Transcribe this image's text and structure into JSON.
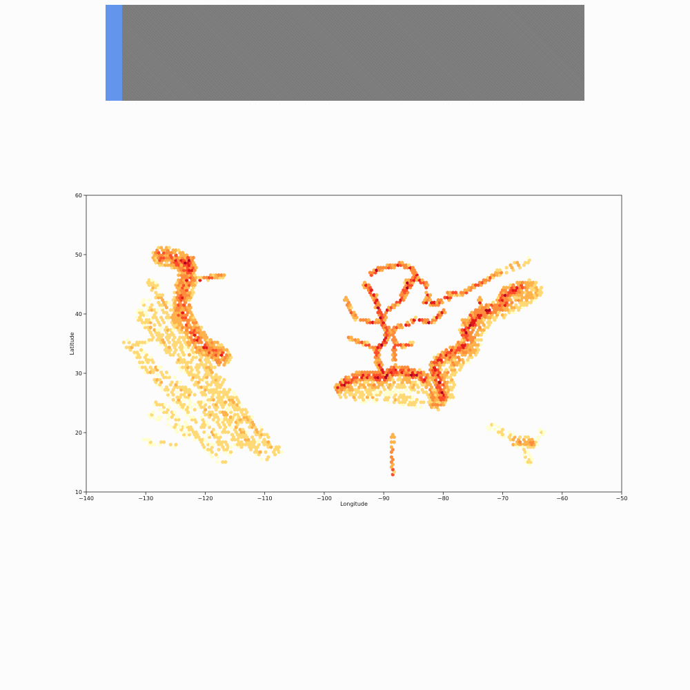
{
  "progress": {
    "fraction": 0.034,
    "fill_color": "#6495ED",
    "track_color": "#7f7f7f"
  },
  "chart_data": {
    "type": "heatmap",
    "subtype": "hexbin",
    "title": "",
    "xlabel": "Longitude",
    "ylabel": "Latitude",
    "xlim": [
      -140,
      -50
    ],
    "ylim": [
      10,
      60
    ],
    "xticks": [
      -140,
      -130,
      -120,
      -110,
      -100,
      -90,
      -80,
      -70,
      -60,
      -50
    ],
    "yticks": [
      10,
      20,
      30,
      40,
      50,
      60
    ],
    "grid": false,
    "colormap": [
      "#ffffcc",
      "#fed976",
      "#feb24c",
      "#fd8d3c",
      "#fc4e2a",
      "#e31a1c",
      "#b10026"
    ],
    "density_paths": [
      {
        "name": "pacific-coast",
        "width": 1.6,
        "density": 0.7,
        "points": [
          [
            -127.5,
            49.8
          ],
          [
            -125.5,
            49.5
          ],
          [
            -123.5,
            48.5
          ],
          [
            -123,
            46
          ],
          [
            -124,
            42
          ],
          [
            -123.8,
            40
          ],
          [
            -122.5,
            37.8
          ],
          [
            -120.6,
            34.6
          ],
          [
            -118.3,
            33.8
          ],
          [
            -117.2,
            32.7
          ]
        ]
      },
      {
        "name": "puget-sound",
        "width": 0.9,
        "density": 0.95,
        "points": [
          [
            -124.5,
            48.4
          ],
          [
            -123.2,
            48.8
          ],
          [
            -122.4,
            47.6
          ],
          [
            -122.7,
            49
          ]
        ]
      },
      {
        "name": "columbia-river",
        "width": 0.4,
        "density": 0.7,
        "points": [
          [
            -124,
            46.2
          ],
          [
            -122.5,
            46
          ],
          [
            -121,
            45.7
          ],
          [
            -119,
            46.2
          ],
          [
            -117,
            46.5
          ]
        ]
      },
      {
        "name": "pacific-lane-1",
        "width": 0.9,
        "density": 0.35,
        "points": [
          [
            -129,
            45
          ],
          [
            -124,
            37
          ],
          [
            -118,
            29
          ],
          [
            -112,
            21
          ],
          [
            -108,
            17
          ]
        ]
      },
      {
        "name": "pacific-lane-2",
        "width": 0.9,
        "density": 0.35,
        "points": [
          [
            -131,
            40
          ],
          [
            -125,
            33
          ],
          [
            -119,
            26
          ],
          [
            -113,
            19
          ],
          [
            -110,
            16
          ]
        ]
      },
      {
        "name": "pacific-lane-3",
        "width": 0.8,
        "density": 0.3,
        "points": [
          [
            -133,
            35
          ],
          [
            -126,
            29
          ],
          [
            -120,
            24
          ],
          [
            -114,
            18
          ]
        ]
      },
      {
        "name": "pacific-lane-4",
        "width": 0.8,
        "density": 0.3,
        "points": [
          [
            -131,
            32
          ],
          [
            -125,
            26
          ],
          [
            -119,
            20
          ],
          [
            -116,
            17
          ]
        ]
      },
      {
        "name": "pacific-lane-5",
        "width": 0.7,
        "density": 0.25,
        "points": [
          [
            -128,
            25
          ],
          [
            -122,
            20
          ],
          [
            -117,
            15
          ]
        ]
      },
      {
        "name": "pacific-lane-6",
        "width": 0.7,
        "density": 0.3,
        "points": [
          [
            -130,
            42
          ],
          [
            -122,
            32
          ],
          [
            -114,
            22
          ]
        ]
      },
      {
        "name": "pacific-west-fringe",
        "width": 0.5,
        "density": 0.22,
        "points": [
          [
            -128,
            36
          ],
          [
            -131,
            35
          ],
          [
            -133,
            34.5
          ]
        ]
      },
      {
        "name": "pacific-southwest",
        "width": 0.6,
        "density": 0.2,
        "points": [
          [
            -129,
            23
          ],
          [
            -125,
            21
          ],
          [
            -122,
            19
          ],
          [
            -118,
            17
          ]
        ]
      },
      {
        "name": "hawaii-lane",
        "width": 0.5,
        "density": 0.2,
        "points": [
          [
            -130,
            18.5
          ],
          [
            -125,
            18
          ]
        ]
      },
      {
        "name": "lake-superior",
        "width": 0.4,
        "density": 0.8,
        "points": [
          [
            -92.1,
            46.7
          ],
          [
            -91,
            47.5
          ],
          [
            -89,
            48
          ],
          [
            -87,
            48.4
          ],
          [
            -85,
            47.5
          ],
          [
            -84.5,
            46.5
          ]
        ]
      },
      {
        "name": "lake-michigan",
        "width": 0.4,
        "density": 0.85,
        "points": [
          [
            -84.5,
            46.5
          ],
          [
            -85.5,
            45
          ],
          [
            -86.5,
            44
          ],
          [
            -87,
            42.5
          ],
          [
            -87.6,
            41.9
          ],
          [
            -86.5,
            43
          ],
          [
            -86,
            45.5
          ]
        ]
      },
      {
        "name": "lake-huron",
        "width": 0.4,
        "density": 0.8,
        "points": [
          [
            -84.5,
            46
          ],
          [
            -83,
            45
          ],
          [
            -82.5,
            43
          ]
        ]
      },
      {
        "name": "lake-erie",
        "width": 0.45,
        "density": 0.8,
        "points": [
          [
            -82.5,
            43
          ],
          [
            -83,
            42
          ],
          [
            -81,
            41.8
          ],
          [
            -79,
            42.8
          ]
        ]
      },
      {
        "name": "lake-ontario",
        "width": 0.35,
        "density": 0.75,
        "points": [
          [
            -79,
            43.5
          ],
          [
            -76.5,
            43.5
          ],
          [
            -75,
            44.5
          ],
          [
            -73,
            45.5
          ],
          [
            -71,
            46.8
          ]
        ]
      },
      {
        "name": "st-lawrence",
        "width": 0.6,
        "density": 0.45,
        "points": [
          [
            -71,
            46.8
          ],
          [
            -68,
            48
          ],
          [
            -66,
            49
          ]
        ]
      },
      {
        "name": "mississippi",
        "width": 0.45,
        "density": 0.9,
        "points": [
          [
            -90.1,
            29.9
          ],
          [
            -91,
            32
          ],
          [
            -91.2,
            34
          ],
          [
            -89.9,
            35.1
          ],
          [
            -89.2,
            37
          ],
          [
            -90.2,
            38.6
          ],
          [
            -91,
            41
          ],
          [
            -91.5,
            43
          ],
          [
            -93,
            44.9
          ]
        ]
      },
      {
        "name": "illinois-river",
        "width": 0.35,
        "density": 0.75,
        "points": [
          [
            -90.2,
            38.8
          ],
          [
            -89.5,
            40.5
          ],
          [
            -88,
            41.5
          ],
          [
            -87.6,
            41.9
          ]
        ]
      },
      {
        "name": "missouri-river",
        "width": 0.35,
        "density": 0.75,
        "points": [
          [
            -90.2,
            38.7
          ],
          [
            -92,
            38.6
          ],
          [
            -94.6,
            39.1
          ],
          [
            -95.9,
            41.2
          ],
          [
            -96.4,
            42.5
          ]
        ]
      },
      {
        "name": "ohio-river",
        "width": 0.35,
        "density": 0.8,
        "points": [
          [
            -89.2,
            37
          ],
          [
            -87.5,
            37.9
          ],
          [
            -86,
            38.2
          ],
          [
            -84.5,
            39.1
          ],
          [
            -82,
            38.5
          ],
          [
            -80,
            40.4
          ]
        ]
      },
      {
        "name": "tennessee-river",
        "width": 0.35,
        "density": 0.75,
        "points": [
          [
            -88.5,
            37
          ],
          [
            -88.1,
            35
          ],
          [
            -86.6,
            34.6
          ],
          [
            -85.3,
            35
          ]
        ]
      },
      {
        "name": "arkansas-river",
        "width": 0.35,
        "density": 0.7,
        "points": [
          [
            -91.2,
            33.9
          ],
          [
            -92.3,
            34.7
          ],
          [
            -94.4,
            35.4
          ],
          [
            -96,
            36.1
          ]
        ]
      },
      {
        "name": "tenn-tombigbee",
        "width": 0.3,
        "density": 0.75,
        "points": [
          [
            -88.2,
            30.7
          ],
          [
            -88.2,
            32.5
          ],
          [
            -88.3,
            34.5
          ]
        ]
      },
      {
        "name": "gulf-coast",
        "width": 0.9,
        "density": 0.85,
        "points": [
          [
            -97.5,
            27.5
          ],
          [
            -96,
            28.6
          ],
          [
            -94,
            29.5
          ],
          [
            -92,
            29.6
          ],
          [
            -90,
            29.2
          ],
          [
            -88.5,
            30.3
          ],
          [
            -87,
            30.4
          ],
          [
            -85.5,
            29.9
          ],
          [
            -84,
            29.8
          ],
          [
            -83,
            29
          ]
        ]
      },
      {
        "name": "gulf-offshore",
        "width": 1.1,
        "density": 0.4,
        "points": [
          [
            -97,
            26.8
          ],
          [
            -95,
            27.5
          ],
          [
            -92,
            28
          ],
          [
            -89,
            28.3
          ],
          [
            -86,
            28.5
          ],
          [
            -84,
            27.5
          ]
        ]
      },
      {
        "name": "gulf-lane",
        "width": 0.9,
        "density": 0.28,
        "points": [
          [
            -95,
            26
          ],
          [
            -91,
            26
          ],
          [
            -87,
            25.5
          ],
          [
            -84,
            25
          ]
        ]
      },
      {
        "name": "gulf-central-scatter",
        "width": 1.5,
        "density": 0.15,
        "points": [
          [
            -93,
            27
          ],
          [
            -89,
            26.5
          ],
          [
            -86,
            26.5
          ]
        ]
      },
      {
        "name": "florida-west",
        "width": 0.7,
        "density": 0.6,
        "points": [
          [
            -83,
            29
          ],
          [
            -82.6,
            27.9
          ],
          [
            -82,
            26.5
          ],
          [
            -81.5,
            25.5
          ]
        ]
      },
      {
        "name": "florida-keys",
        "width": 0.8,
        "density": 0.55,
        "points": [
          [
            -81.8,
            24.6
          ],
          [
            -81,
            24.5
          ],
          [
            -80.3,
            25
          ],
          [
            -80.1,
            26
          ]
        ]
      },
      {
        "name": "east-coast",
        "width": 1.0,
        "density": 0.85,
        "points": [
          [
            -80.1,
            26
          ],
          [
            -80.6,
            28.5
          ],
          [
            -81.4,
            30.4
          ],
          [
            -81,
            32
          ],
          [
            -79.5,
            33
          ],
          [
            -78,
            33.9
          ],
          [
            -76.5,
            34.7
          ],
          [
            -75.7,
            35.5
          ],
          [
            -76.3,
            37
          ],
          [
            -75,
            38.5
          ],
          [
            -74,
            40
          ],
          [
            -72,
            40.8
          ],
          [
            -70,
            41.7
          ],
          [
            -69.5,
            43.5
          ],
          [
            -67,
            44.5
          ]
        ]
      },
      {
        "name": "east-offshore",
        "width": 1.6,
        "density": 0.45,
        "points": [
          [
            -79.5,
            27
          ],
          [
            -79.8,
            30
          ],
          [
            -78,
            32
          ],
          [
            -75.5,
            34
          ],
          [
            -74.5,
            37
          ],
          [
            -73,
            39.5
          ],
          [
            -70,
            41
          ],
          [
            -67,
            42.5
          ],
          [
            -65,
            44
          ]
        ]
      },
      {
        "name": "chesapeake",
        "width": 0.4,
        "density": 0.8,
        "points": [
          [
            -76.3,
            37
          ],
          [
            -76.4,
            38
          ],
          [
            -76.5,
            39.2
          ]
        ]
      },
      {
        "name": "delaware",
        "width": 0.4,
        "density": 0.85,
        "points": [
          [
            -75.2,
            38.8
          ],
          [
            -75.3,
            39.5
          ],
          [
            -75.1,
            40
          ]
        ]
      },
      {
        "name": "hudson",
        "width": 0.3,
        "density": 0.7,
        "points": [
          [
            -74,
            40.7
          ],
          [
            -73.9,
            41.5
          ],
          [
            -73.8,
            42.7
          ]
        ]
      },
      {
        "name": "bay-of-fundy",
        "width": 0.6,
        "density": 0.5,
        "points": [
          [
            -67,
            44.5
          ],
          [
            -66,
            45
          ],
          [
            -65,
            45.2
          ]
        ]
      },
      {
        "name": "caribbean-approach",
        "width": 0.6,
        "density": 0.25,
        "points": [
          [
            -72,
            21
          ],
          [
            -69,
            19.5
          ],
          [
            -66.5,
            18.5
          ]
        ]
      },
      {
        "name": "puerto-rico-north",
        "width": 0.8,
        "density": 0.55,
        "points": [
          [
            -68,
            18.5
          ],
          [
            -66.1,
            18.5
          ],
          [
            -65,
            18.3
          ]
        ]
      },
      {
        "name": "puerto-rico-south",
        "width": 0.5,
        "density": 0.4,
        "points": [
          [
            -67,
            18
          ],
          [
            -65.5,
            18
          ],
          [
            -64.7,
            17.8
          ]
        ]
      },
      {
        "name": "caribbean-south",
        "width": 0.7,
        "density": 0.2,
        "points": [
          [
            -67,
            17.5
          ],
          [
            -66,
            16
          ],
          [
            -65.5,
            15.2
          ]
        ]
      },
      {
        "name": "caribbean-east",
        "width": 0.6,
        "density": 0.2,
        "points": [
          [
            -64.5,
            18.3
          ],
          [
            -63.5,
            19
          ],
          [
            -63.5,
            20.5
          ]
        ]
      },
      {
        "name": "gulf-south-lane",
        "width": 0.3,
        "density": 0.65,
        "points": [
          [
            -88.5,
            19.5
          ],
          [
            -88.6,
            16.5
          ],
          [
            -88.5,
            13
          ]
        ]
      }
    ]
  }
}
